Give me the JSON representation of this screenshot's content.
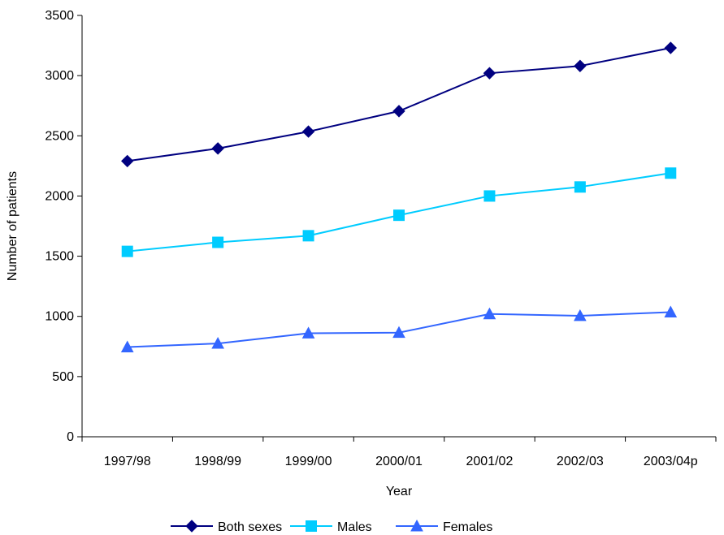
{
  "chart_data": {
    "type": "line",
    "title": "",
    "xlabel": "Year",
    "ylabel": "Number of patients",
    "categories": [
      "1997/98",
      "1998/99",
      "1999/00",
      "2000/01",
      "2001/02",
      "2002/03",
      "2003/04p"
    ],
    "ylim": [
      0,
      3500
    ],
    "yticks": [
      0,
      500,
      1000,
      1500,
      2000,
      2500,
      3000,
      3500
    ],
    "grid": false,
    "legend_position": "bottom",
    "series": [
      {
        "name": "Both sexes",
        "marker": "diamond",
        "color": "#000080",
        "values": [
          2290,
          2395,
          2535,
          2705,
          3020,
          3080,
          3230
        ]
      },
      {
        "name": "Males",
        "marker": "square",
        "color": "#00ccff",
        "values": [
          1540,
          1615,
          1670,
          1840,
          2000,
          2075,
          2190
        ]
      },
      {
        "name": "Females",
        "marker": "triangle",
        "color": "#3366ff",
        "values": [
          745,
          775,
          860,
          865,
          1020,
          1005,
          1035
        ]
      }
    ]
  }
}
